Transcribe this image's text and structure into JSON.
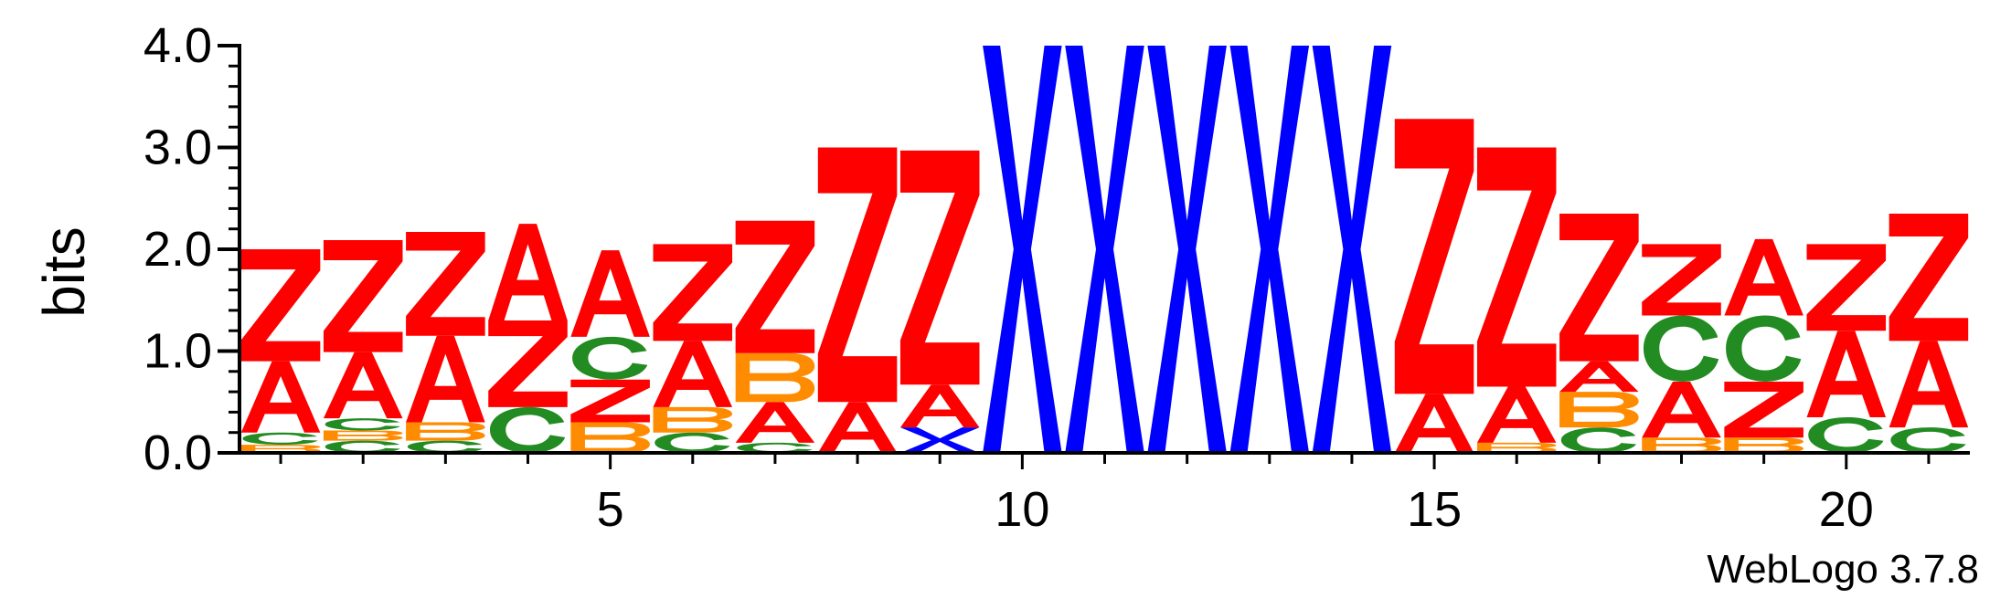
{
  "chart_data": {
    "type": "sequence-logo",
    "ylabel": "bits",
    "ylim": [
      0,
      4.0
    ],
    "yticks": [
      "0.0",
      "1.0",
      "2.0",
      "3.0",
      "4.0"
    ],
    "xticks": [
      5,
      10,
      15,
      20
    ],
    "positions": [
      1,
      2,
      3,
      4,
      5,
      6,
      7,
      8,
      9,
      10,
      11,
      12,
      13,
      14,
      15,
      16,
      17,
      18,
      19,
      20,
      21
    ],
    "colors": {
      "Z": "#ff0000",
      "A": "#ff0000",
      "X": "#0000ff",
      "C": "#228b22",
      "B": "#ff8c00"
    },
    "stacks": [
      [
        {
          "l": "B",
          "h": 0.08
        },
        {
          "l": "C",
          "h": 0.12
        },
        {
          "l": "A",
          "h": 0.7
        },
        {
          "l": "Z",
          "h": 1.1
        }
      ],
      [
        {
          "l": "C",
          "h": 0.12
        },
        {
          "l": "B",
          "h": 0.1
        },
        {
          "l": "C",
          "h": 0.12
        },
        {
          "l": "A",
          "h": 0.65
        },
        {
          "l": "Z",
          "h": 1.1
        }
      ],
      [
        {
          "l": "C",
          "h": 0.12
        },
        {
          "l": "B",
          "h": 0.18
        },
        {
          "l": "A",
          "h": 0.85
        },
        {
          "l": "Z",
          "h": 1.02
        }
      ],
      [
        {
          "l": "C",
          "h": 0.45
        },
        {
          "l": "Z",
          "h": 0.85
        },
        {
          "l": "A",
          "h": 0.95
        }
      ],
      [
        {
          "l": "B",
          "h": 0.3
        },
        {
          "l": "Z",
          "h": 0.42
        },
        {
          "l": "C",
          "h": 0.42
        },
        {
          "l": "A",
          "h": 0.85
        }
      ],
      [
        {
          "l": "C",
          "h": 0.2
        },
        {
          "l": "B",
          "h": 0.25
        },
        {
          "l": "A",
          "h": 0.65
        },
        {
          "l": "Z",
          "h": 0.95
        }
      ],
      [
        {
          "l": "C",
          "h": 0.1
        },
        {
          "l": "A",
          "h": 0.4
        },
        {
          "l": "B",
          "h": 0.48
        },
        {
          "l": "Z",
          "h": 1.3
        }
      ],
      [
        {
          "l": "A",
          "h": 0.5
        },
        {
          "l": "Z",
          "h": 2.5
        }
      ],
      [
        {
          "l": "X",
          "h": 0.25
        },
        {
          "l": "A",
          "h": 0.42
        },
        {
          "l": "Z",
          "h": 2.3
        }
      ],
      [
        {
          "l": "X",
          "h": 4.0
        }
      ],
      [
        {
          "l": "X",
          "h": 4.0
        }
      ],
      [
        {
          "l": "X",
          "h": 4.0
        }
      ],
      [
        {
          "l": "X",
          "h": 4.0
        }
      ],
      [
        {
          "l": "X",
          "h": 4.0
        }
      ],
      [
        {
          "l": "A",
          "h": 0.58
        },
        {
          "l": "Z",
          "h": 2.7
        }
      ],
      [
        {
          "l": "B",
          "h": 0.1
        },
        {
          "l": "A",
          "h": 0.55
        },
        {
          "l": "Z",
          "h": 2.35
        }
      ],
      [
        {
          "l": "C",
          "h": 0.25
        },
        {
          "l": "B",
          "h": 0.35
        },
        {
          "l": "A",
          "h": 0.3
        },
        {
          "l": "Z",
          "h": 1.45
        }
      ],
      [
        {
          "l": "B",
          "h": 0.15
        },
        {
          "l": "A",
          "h": 0.55
        },
        {
          "l": "C",
          "h": 0.65
        },
        {
          "l": "Z",
          "h": 0.7
        }
      ],
      [
        {
          "l": "B",
          "h": 0.15
        },
        {
          "l": "Z",
          "h": 0.55
        },
        {
          "l": "C",
          "h": 0.65
        },
        {
          "l": "A",
          "h": 0.75
        }
      ],
      [
        {
          "l": "C",
          "h": 0.35
        },
        {
          "l": "A",
          "h": 0.85
        },
        {
          "l": "Z",
          "h": 0.85
        }
      ],
      [
        {
          "l": "C",
          "h": 0.25
        },
        {
          "l": "A",
          "h": 0.85
        },
        {
          "l": "Z",
          "h": 1.25
        }
      ]
    ]
  },
  "footer": {
    "text": "WebLogo 3.7.8"
  }
}
